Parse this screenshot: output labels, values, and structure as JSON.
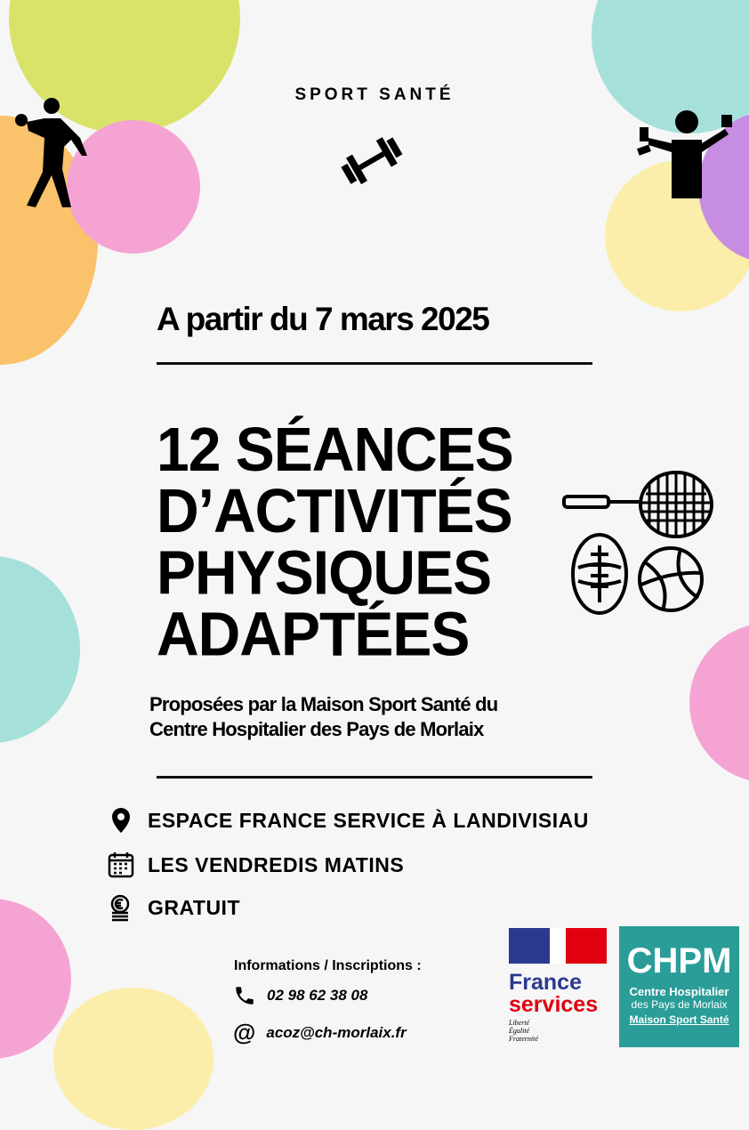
{
  "header": {
    "kicker": "SPORT SANTÉ"
  },
  "date": "A partir du 7 mars 2025",
  "title_lines": [
    "12 SÉANCES",
    "D’ACTIVITÉS",
    "PHYSIQUES",
    "ADAPTÉES"
  ],
  "subtitle_lines": [
    "Proposées par la Maison Sport Santé du",
    "Centre Hospitalier des Pays de Morlaix"
  ],
  "details": [
    {
      "icon": "location-pin-icon",
      "text": "ESPACE FRANCE SERVICE À LANDIVISIAU"
    },
    {
      "icon": "calendar-icon",
      "text": "LES VENDREDIS MATINS"
    },
    {
      "icon": "euro-coins-icon",
      "text": "GRATUIT"
    }
  ],
  "contact": {
    "heading": "Informations / Inscriptions :",
    "phone": "02 98 62 38 08",
    "email": "acoz@ch-morlaix.fr"
  },
  "logos": {
    "france_services": {
      "line1": "France",
      "line2": "services",
      "motto": [
        "Liberté",
        "Égalité",
        "Fraternité"
      ]
    },
    "chpm": {
      "acronym": "CHPM",
      "line1": "Centre Hospitalier",
      "line2": "des Pays de Morlaix",
      "line3": "Maison Sport Santé"
    }
  },
  "colors": {
    "teal": "#2a9d98",
    "blue": "#2b3990",
    "red": "#e1000f",
    "yellow_green": "#d9e36a",
    "pink": "#f5a3d3",
    "orange": "#f9c26b",
    "purple": "#c78de0",
    "light_yellow": "#fbeeaa",
    "light_teal": "#a6e0db"
  }
}
